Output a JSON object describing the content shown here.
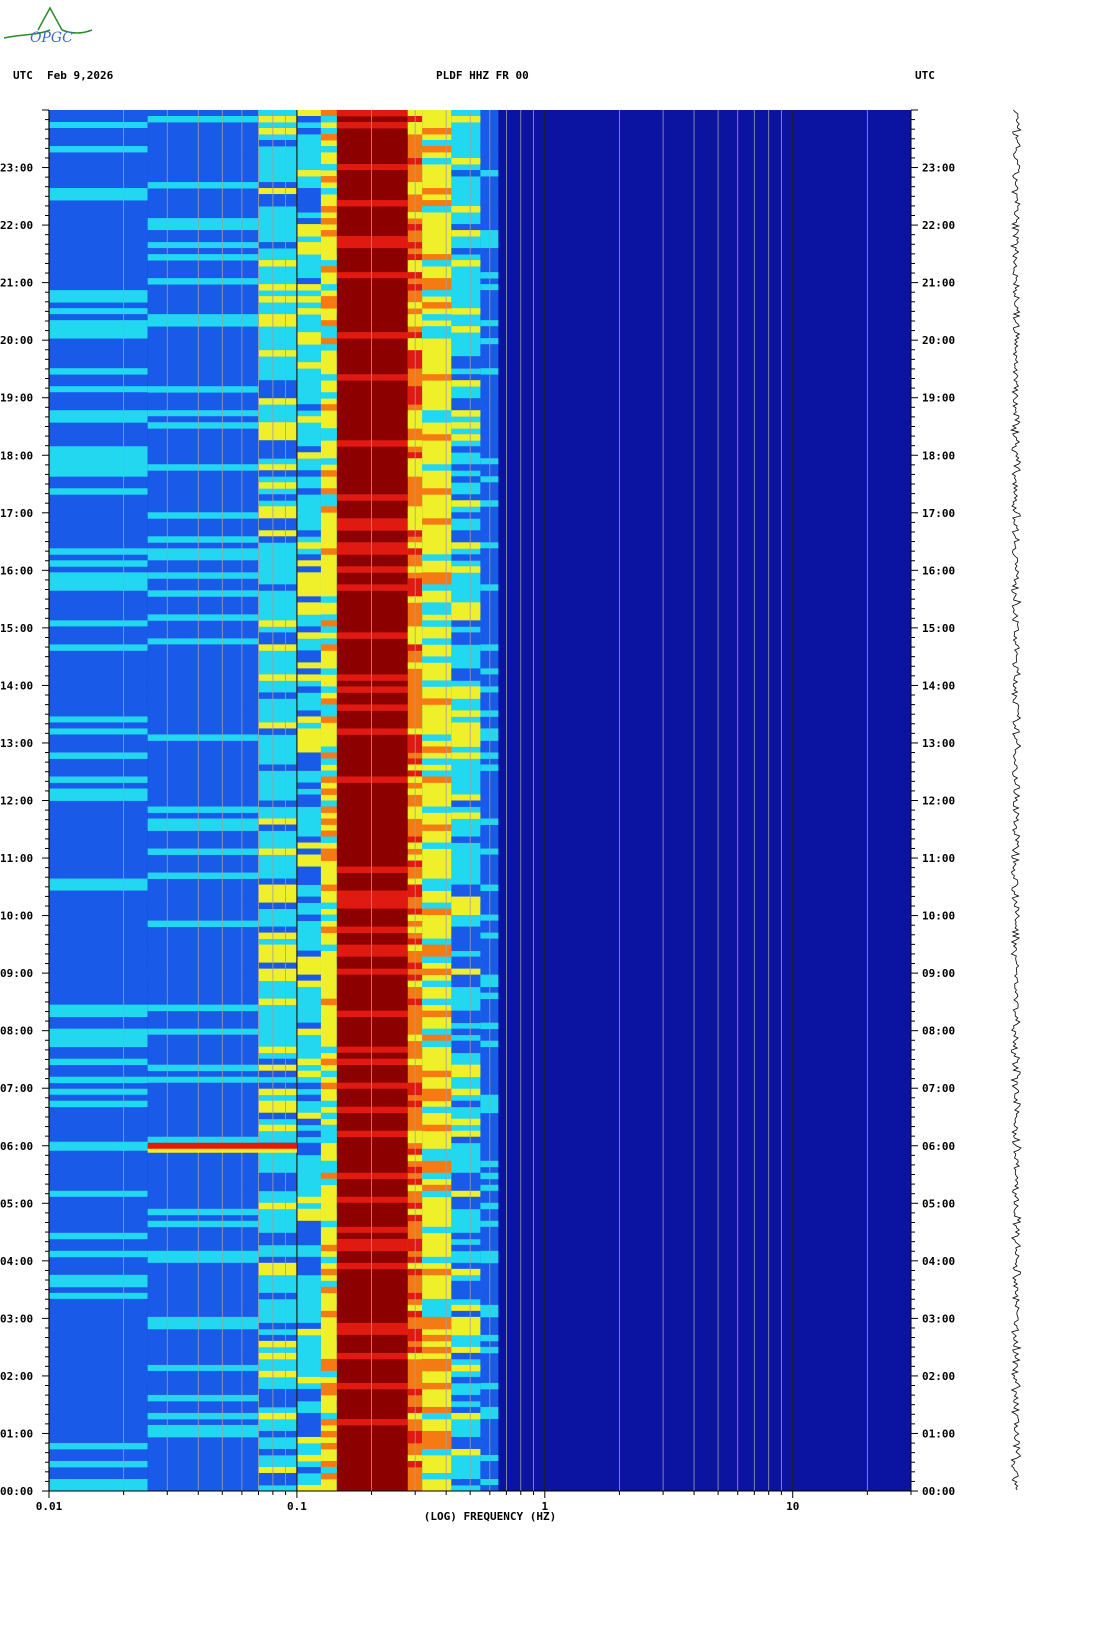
{
  "logo_text": "OPGC",
  "header": {
    "left_tz": "UTC",
    "date": "Feb 9,2026",
    "station": "PLDF HHZ FR 00",
    "right_tz": "UTC"
  },
  "colors": {
    "background_low": "#0a14a0",
    "mid_blue": "#1a5ae8",
    "cyan": "#22d8f0",
    "yellow": "#f0f02a",
    "orange": "#f57a14",
    "red": "#e01a10",
    "dark_red": "#8c0000"
  },
  "chart_data": {
    "type": "heatmap",
    "title": "PLDF HHZ FR 00",
    "xlabel": "(LOG) FREQUENCY (HZ)",
    "ylabel": "",
    "x_scale": "log",
    "xlim": [
      0.01,
      30
    ],
    "ylim": [
      0,
      24
    ],
    "x_ticks": [
      {
        "value": 0.01,
        "label": "0.01"
      },
      {
        "value": 0.1,
        "label": "0.1"
      },
      {
        "value": 1,
        "label": "1"
      },
      {
        "value": 10,
        "label": "10"
      }
    ],
    "y_ticks": [
      {
        "value": 0,
        "label": "00:00"
      },
      {
        "value": 1,
        "label": "01:00"
      },
      {
        "value": 2,
        "label": "02:00"
      },
      {
        "value": 3,
        "label": "03:00"
      },
      {
        "value": 4,
        "label": "04:00"
      },
      {
        "value": 5,
        "label": "05:00"
      },
      {
        "value": 6,
        "label": "06:00"
      },
      {
        "value": 7,
        "label": "07:00"
      },
      {
        "value": 8,
        "label": "08:00"
      },
      {
        "value": 9,
        "label": "09:00"
      },
      {
        "value": 10,
        "label": "10:00"
      },
      {
        "value": 11,
        "label": "11:00"
      },
      {
        "value": 12,
        "label": "12:00"
      },
      {
        "value": 13,
        "label": "13:00"
      },
      {
        "value": 14,
        "label": "14:00"
      },
      {
        "value": 15,
        "label": "15:00"
      },
      {
        "value": 16,
        "label": "16:00"
      },
      {
        "value": 17,
        "label": "17:00"
      },
      {
        "value": 18,
        "label": "18:00"
      },
      {
        "value": 19,
        "label": "19:00"
      },
      {
        "value": 20,
        "label": "20:00"
      },
      {
        "value": 21,
        "label": "21:00"
      },
      {
        "value": 22,
        "label": "22:00"
      },
      {
        "value": 23,
        "label": "23:00"
      }
    ],
    "bands": [
      {
        "f0": 0.01,
        "f1": 0.025,
        "level": "mid_blue"
      },
      {
        "f0": 0.025,
        "f1": 0.07,
        "level": "mid_blue"
      },
      {
        "f0": 0.07,
        "f1": 0.1,
        "level": "cyan"
      },
      {
        "f0": 0.1,
        "f1": 0.125,
        "level": "cyan"
      },
      {
        "f0": 0.125,
        "f1": 0.145,
        "level": "yellow"
      },
      {
        "f0": 0.145,
        "f1": 0.28,
        "level": "dark_red"
      },
      {
        "f0": 0.28,
        "f1": 0.32,
        "level": "orange"
      },
      {
        "f0": 0.32,
        "f1": 0.42,
        "level": "yellow"
      },
      {
        "f0": 0.42,
        "f1": 0.55,
        "level": "cyan"
      },
      {
        "f0": 0.55,
        "f1": 0.65,
        "level": "mid_blue"
      },
      {
        "f0": 0.65,
        "f1": 30,
        "level": "background_low"
      }
    ],
    "events": [
      {
        "time": 6.0,
        "f0": 0.025,
        "f1": 0.1,
        "level": "red",
        "label": ""
      }
    ],
    "grid": true
  }
}
